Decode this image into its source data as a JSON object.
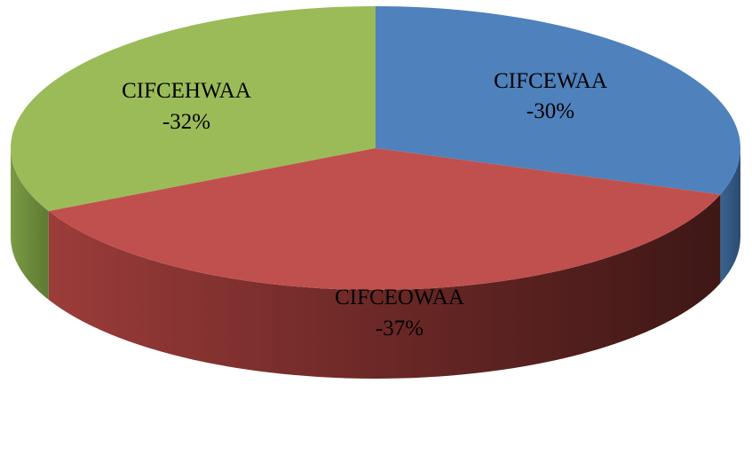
{
  "chart_data": {
    "type": "pie",
    "title": "",
    "style": "3d",
    "slices": [
      {
        "name": "CIFCEWAA",
        "value": 30,
        "label": "-30%",
        "color": "#4F81BD"
      },
      {
        "name": "CIFCEOWAA",
        "value": 37,
        "label": "-37%",
        "color": "#C0504D"
      },
      {
        "name": "CIFCEHWAA",
        "value": 32,
        "label": "-32%",
        "color": "#9BBB59"
      }
    ]
  }
}
